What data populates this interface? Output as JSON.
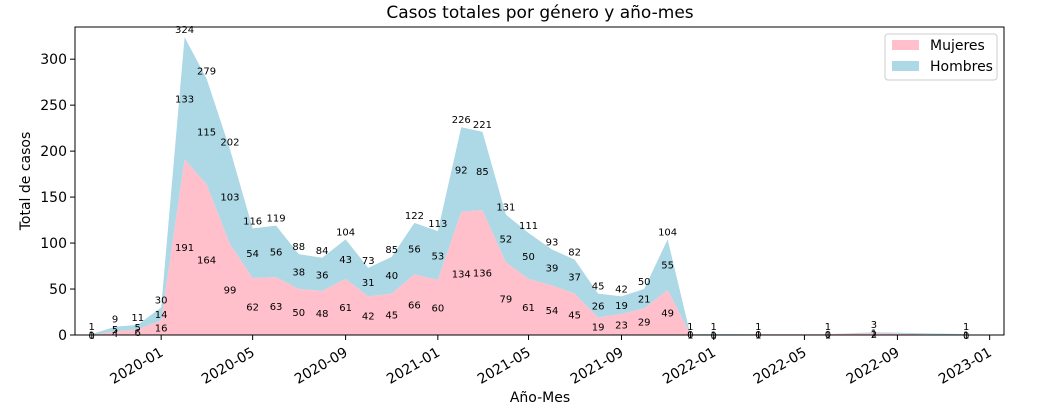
{
  "chart_data": {
    "type": "area",
    "title": "Casos totales por género y año-mes",
    "xlabel": "Año-Mes",
    "ylabel": "Total de casos",
    "ylim": [
      0,
      335
    ],
    "xlim": [
      "2019-09-09",
      "2023-01-20"
    ],
    "y_ticks": [
      0,
      50,
      100,
      150,
      200,
      250,
      300
    ],
    "x_ticks": [
      "2020-01",
      "2020-05",
      "2020-09",
      "2021-01",
      "2021-05",
      "2021-09",
      "2022-01",
      "2022-05",
      "2022-09",
      "2023-01"
    ],
    "stacked": true,
    "legend_position": "top-right",
    "grid": false,
    "x": [
      "2019-10",
      "2019-11",
      "2019-12",
      "2020-01",
      "2020-02",
      "2020-03",
      "2020-04",
      "2020-05",
      "2020-06",
      "2020-07",
      "2020-08",
      "2020-09",
      "2020-10",
      "2020-11",
      "2020-12",
      "2021-01",
      "2021-02",
      "2021-03",
      "2021-04",
      "2021-05",
      "2021-06",
      "2021-07",
      "2021-08",
      "2021-09",
      "2021-10",
      "2021-11",
      "2021-12",
      "2022-01",
      "2022-03",
      "2022-06",
      "2022-08",
      "2022-12"
    ],
    "series": [
      {
        "name": "Mujeres",
        "color": "#ffc0cb",
        "values": [
          0,
          4,
          6,
          16,
          191,
          164,
          99,
          62,
          63,
          50,
          48,
          61,
          42,
          45,
          66,
          60,
          134,
          136,
          79,
          61,
          54,
          45,
          19,
          23,
          29,
          49,
          1,
          0,
          1,
          1,
          2,
          0
        ]
      },
      {
        "name": "Hombres",
        "color": "#add8e6",
        "values": [
          1,
          5,
          5,
          14,
          133,
          115,
          103,
          54,
          56,
          38,
          36,
          43,
          31,
          40,
          56,
          53,
          92,
          85,
          52,
          50,
          39,
          37,
          26,
          19,
          21,
          55,
          0,
          1,
          0,
          0,
          1,
          1
        ]
      }
    ],
    "totals": [
      1,
      9,
      11,
      30,
      324,
      279,
      202,
      116,
      119,
      88,
      84,
      104,
      73,
      85,
      122,
      113,
      226,
      221,
      131,
      111,
      93,
      82,
      45,
      42,
      50,
      104,
      1,
      1,
      1,
      1,
      3,
      1
    ]
  }
}
